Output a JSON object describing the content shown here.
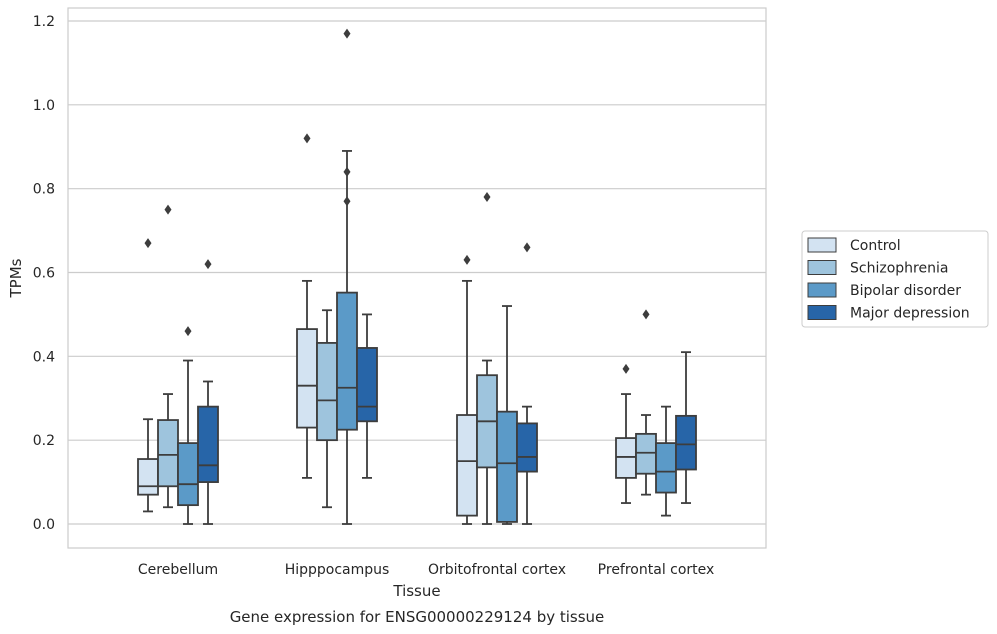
{
  "chart_data": {
    "type": "boxplot",
    "title": "",
    "caption": "Gene expression for ENSG00000229124 by tissue",
    "xlabel": "Tissue",
    "ylabel": "TPMs",
    "ylim": [
      -0.055,
      1.23
    ],
    "yticks": [
      "0.0",
      "0.2",
      "0.4",
      "0.6",
      "0.8",
      "1.0",
      "1.2"
    ],
    "grid": "horizontal",
    "legend_position": "right",
    "categories": [
      "Cerebellum",
      "Hipppocampus",
      "Orbitofrontal cortex",
      "Prefrontal cortex"
    ],
    "series": [
      {
        "name": "Control",
        "color": "#d3e3f2",
        "boxes": [
          {
            "whisker_low": 0.03,
            "q1": 0.07,
            "median": 0.09,
            "q3": 0.155,
            "whisker_high": 0.25,
            "outliers": [
              0.67
            ]
          },
          {
            "whisker_low": 0.11,
            "q1": 0.23,
            "median": 0.33,
            "q3": 0.465,
            "whisker_high": 0.58,
            "outliers": [
              0.92
            ]
          },
          {
            "whisker_low": 0.0,
            "q1": 0.02,
            "median": 0.15,
            "q3": 0.26,
            "whisker_high": 0.58,
            "outliers": [
              0.63
            ]
          },
          {
            "whisker_low": 0.05,
            "q1": 0.11,
            "median": 0.16,
            "q3": 0.205,
            "whisker_high": 0.31,
            "outliers": [
              0.37
            ]
          }
        ]
      },
      {
        "name": "Schizophrenia",
        "color": "#9ec4dd",
        "boxes": [
          {
            "whisker_low": 0.04,
            "q1": 0.09,
            "median": 0.165,
            "q3": 0.248,
            "whisker_high": 0.31,
            "outliers": [
              0.75
            ]
          },
          {
            "whisker_low": 0.04,
            "q1": 0.2,
            "median": 0.295,
            "q3": 0.432,
            "whisker_high": 0.51,
            "outliers": []
          },
          {
            "whisker_low": 0.0,
            "q1": 0.135,
            "median": 0.245,
            "q3": 0.355,
            "whisker_high": 0.39,
            "outliers": [
              0.78
            ]
          },
          {
            "whisker_low": 0.07,
            "q1": 0.12,
            "median": 0.17,
            "q3": 0.215,
            "whisker_high": 0.26,
            "outliers": [
              0.5
            ]
          }
        ]
      },
      {
        "name": "Bipolar disorder",
        "color": "#5b9ac8",
        "boxes": [
          {
            "whisker_low": 0.0,
            "q1": 0.045,
            "median": 0.095,
            "q3": 0.193,
            "whisker_high": 0.39,
            "outliers": [
              0.46
            ]
          },
          {
            "whisker_low": 0.0,
            "q1": 0.225,
            "median": 0.325,
            "q3": 0.552,
            "whisker_high": 0.89,
            "outliers": [
              0.77,
              0.84,
              1.17
            ]
          },
          {
            "whisker_low": 0.0,
            "q1": 0.005,
            "median": 0.145,
            "q3": 0.268,
            "whisker_high": 0.52,
            "outliers": []
          },
          {
            "whisker_low": 0.02,
            "q1": 0.075,
            "median": 0.125,
            "q3": 0.193,
            "whisker_high": 0.28,
            "outliers": []
          }
        ]
      },
      {
        "name": "Major depression",
        "color": "#2765a8",
        "boxes": [
          {
            "whisker_low": 0.0,
            "q1": 0.1,
            "median": 0.14,
            "q3": 0.28,
            "whisker_high": 0.34,
            "outliers": [
              0.62
            ]
          },
          {
            "whisker_low": 0.11,
            "q1": 0.245,
            "median": 0.28,
            "q3": 0.42,
            "whisker_high": 0.5,
            "outliers": []
          },
          {
            "whisker_low": 0.0,
            "q1": 0.125,
            "median": 0.16,
            "q3": 0.24,
            "whisker_high": 0.28,
            "outliers": [
              0.66
            ]
          },
          {
            "whisker_low": 0.05,
            "q1": 0.13,
            "median": 0.19,
            "q3": 0.258,
            "whisker_high": 0.41,
            "outliers": []
          }
        ]
      }
    ]
  }
}
